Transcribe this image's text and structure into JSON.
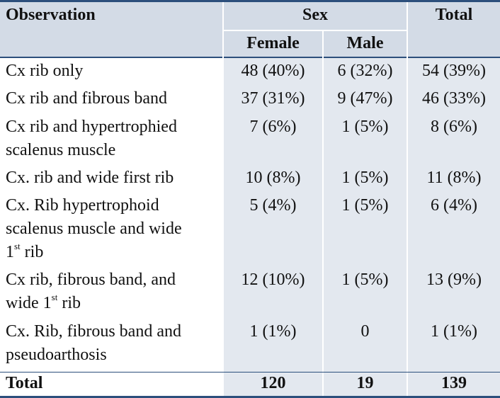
{
  "header": {
    "observation": "Observation",
    "sex": "Sex",
    "total": "Total",
    "female": "Female",
    "male": "Male"
  },
  "rows": [
    {
      "lines": [
        "Cx rib only"
      ],
      "female": "48 (40%)",
      "male": "6 (32%)",
      "total": "54 (39%)"
    },
    {
      "lines": [
        "Cx rib and fibrous band"
      ],
      "female": "37 (31%)",
      "male": "9 (47%)",
      "total": "46 (33%)"
    },
    {
      "lines": [
        "Cx rib and hypertrophied",
        "scalenus muscle"
      ],
      "female": "7 (6%)",
      "male": "1 (5%)",
      "total": "8 (6%)"
    },
    {
      "lines": [
        "Cx. rib and wide first rib"
      ],
      "female": "10 (8%)",
      "male": "1 (5%)",
      "total": "11 (8%)"
    },
    {
      "lines": [
        "Cx. Rib hypertrophoid",
        "scalenus muscle and wide",
        "1",
        "st",
        " rib"
      ],
      "female": "5 (4%)",
      "male": "1 (5%)",
      "total": "6 (4%)"
    },
    {
      "lines": [
        "Cx rib, fibrous band, and",
        "wide 1",
        "st",
        " rib"
      ],
      "female": "12 (10%)",
      "male": "1 (5%)",
      "total": "13 (9%)"
    },
    {
      "lines": [
        "Cx. Rib, fibrous band and",
        "pseudoarthosis"
      ],
      "female": "1 (1%)",
      "male": "0",
      "total": "1 (1%)"
    }
  ],
  "totals": {
    "label": "Total",
    "female": "120",
    "male": "19",
    "total": "139"
  }
}
